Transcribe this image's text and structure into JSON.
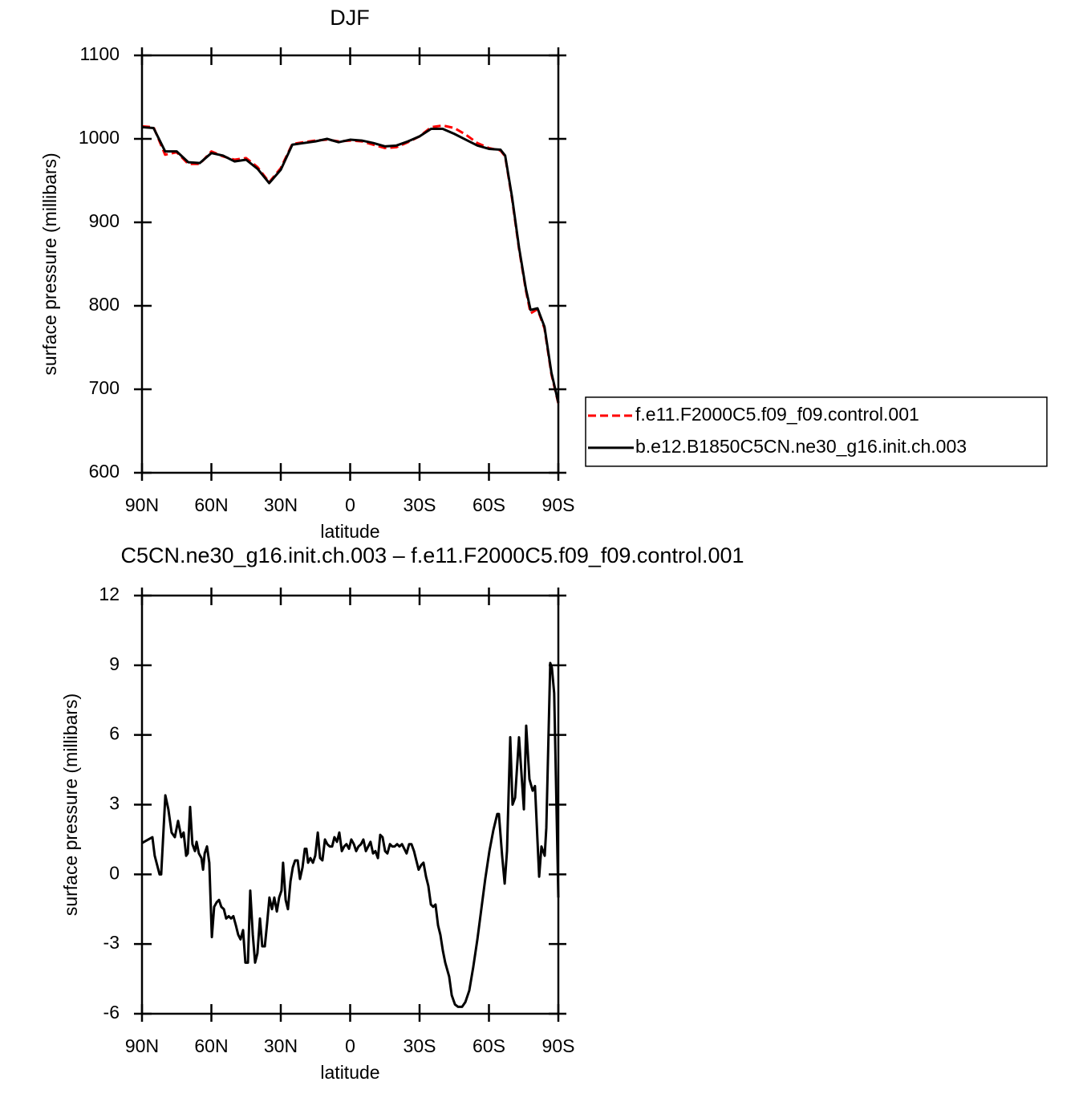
{
  "chart_data": [
    {
      "type": "line",
      "title": "DJF",
      "x_label": "latitude",
      "y_label": "surface pressure (millibars)",
      "x": [
        90,
        85,
        80,
        75,
        70,
        65,
        60,
        55,
        50,
        45,
        40,
        35,
        30,
        25,
        20,
        15,
        10,
        5,
        0,
        -5,
        -10,
        -15,
        -20,
        -25,
        -30,
        -35,
        -40,
        -45,
        -50,
        -55,
        -60,
        -65,
        -67,
        -70,
        -73,
        -76,
        -78,
        -81,
        -84,
        -87,
        -90
      ],
      "series": [
        {
          "name": "f.e11.F2000C5.f09_f09.control.001",
          "color": "#ff0000",
          "dash": true,
          "values": [
            1015,
            1014,
            981,
            984,
            970,
            970,
            985,
            979,
            975,
            977,
            966,
            948,
            965,
            994,
            996,
            998,
            999,
            997,
            998,
            997,
            993,
            989,
            990,
            996,
            1003,
            1014,
            1016,
            1013,
            1005,
            995,
            989,
            986,
            979,
            928,
            868,
            818,
            791,
            796,
            773,
            718,
            683
          ]
        },
        {
          "name": "b.e12.B1850C5CN.ne30_g16.init.ch.003",
          "color": "#000000",
          "dash": false,
          "values": [
            1014,
            1013,
            985,
            985,
            972,
            971,
            983,
            980,
            973,
            975,
            964,
            947,
            963,
            993,
            995,
            997,
            1000,
            996,
            999,
            998,
            995,
            991,
            992,
            997,
            1003,
            1012,
            1012,
            1006,
            999,
            992,
            988,
            987,
            980,
            930,
            870,
            820,
            795,
            797,
            775,
            720,
            684
          ]
        }
      ],
      "xlim": [
        90,
        -90
      ],
      "xticks": [
        {
          "value": 90,
          "label": "90N"
        },
        {
          "value": 60,
          "label": "60N"
        },
        {
          "value": 30,
          "label": "30N"
        },
        0,
        {
          "value": -30,
          "label": "30S"
        },
        {
          "value": -60,
          "label": "60S"
        },
        {
          "value": -90,
          "label": "90S"
        }
      ],
      "ylim": [
        600,
        1100
      ],
      "yticks": [
        600,
        700,
        800,
        900,
        1000,
        1100
      ],
      "legend": "right"
    },
    {
      "type": "line",
      "title": "C5CN.ne30_g16.init.ch.003 – f.e11.F2000C5.f09_f09.control.001",
      "x_label": "latitude",
      "y_label": "surface pressure (millibars)",
      "x": [
        90,
        85.5,
        84.5,
        82.4,
        81.7,
        79.9,
        78.6,
        77.2,
        75.8,
        74.4,
        73.0,
        72.0,
        70.9,
        70.2,
        69.2,
        68.2,
        67.1,
        66.4,
        65.4,
        64.3,
        63.6,
        62.9,
        61.9,
        60.9,
        59.8,
        58.8,
        57.7,
        56.7,
        55.7,
        54.6,
        53.6,
        52.5,
        51.5,
        50.5,
        49.4,
        48.4,
        47.4,
        46.3,
        45.3,
        44.2,
        43.2,
        42.1,
        41.1,
        40.1,
        39.0,
        38.0,
        36.9,
        35.9,
        34.9,
        33.8,
        32.8,
        31.7,
        30.7,
        29.7,
        29.0,
        27.9,
        26.9,
        25.8,
        24.8,
        23.8,
        22.7,
        21.7,
        20.6,
        19.6,
        18.9,
        18.2,
        17.2,
        16.1,
        15.1,
        14.0,
        13.0,
        12.0,
        10.9,
        9.9,
        8.8,
        7.8,
        6.8,
        5.7,
        4.7,
        3.6,
        2.6,
        1.6,
        0.5,
        -0.5,
        -1.6,
        -2.6,
        -3.6,
        -4.7,
        -5.7,
        -6.8,
        -7.8,
        -8.8,
        -9.9,
        -10.9,
        -12.0,
        -13.0,
        -14.0,
        -15.1,
        -16.1,
        -17.2,
        -18.2,
        -19.2,
        -20.3,
        -21.3,
        -22.4,
        -23.4,
        -24.4,
        -25.5,
        -26.5,
        -27.6,
        -28.6,
        -29.6,
        -30.7,
        -31.7,
        -32.8,
        -33.8,
        -34.9,
        -35.9,
        -36.9,
        -38.0,
        -39.0,
        -40.1,
        -41.1,
        -42.8,
        -43.9,
        -45.3,
        -46.6,
        -48.4,
        -49.8,
        -51.5,
        -53.2,
        -55.0,
        -56.7,
        -58.4,
        -60.2,
        -61.9,
        -63.6,
        -64.3,
        -65.7,
        -66.8,
        -67.8,
        -69.2,
        -70.2,
        -71.3,
        -73.0,
        -75.1,
        -76.1,
        -77.5,
        -78.9,
        -79.9,
        -81.7,
        -82.7,
        -84.1,
        -84.8,
        -86.5,
        -87.2,
        -88.2,
        -90.0
      ],
      "series": [
        {
          "color": "#000000",
          "dash": false,
          "values": [
            1.35,
            1.6,
            0.8,
            0.0,
            0.0,
            3.4,
            2.8,
            1.8,
            1.6,
            2.3,
            1.6,
            1.8,
            0.8,
            0.9,
            2.9,
            1.3,
            1.0,
            1.4,
            0.9,
            0.7,
            0.2,
            0.9,
            1.2,
            0.5,
            -2.7,
            -1.4,
            -1.2,
            -1.1,
            -1.4,
            -1.5,
            -1.9,
            -1.8,
            -1.9,
            -1.8,
            -2.2,
            -2.6,
            -2.8,
            -2.4,
            -3.8,
            -3.8,
            -0.7,
            -2.6,
            -3.8,
            -3.4,
            -1.9,
            -3.1,
            -3.1,
            -2.1,
            -1.0,
            -1.5,
            -1.0,
            -1.6,
            -1.0,
            -0.7,
            0.5,
            -1.1,
            -1.5,
            -0.3,
            0.3,
            0.6,
            0.6,
            -0.2,
            0.3,
            1.1,
            1.1,
            0.5,
            0.7,
            0.5,
            0.8,
            1.8,
            0.7,
            0.6,
            1.5,
            1.3,
            1.2,
            1.2,
            1.6,
            1.4,
            1.8,
            1.0,
            1.2,
            1.3,
            1.1,
            1.5,
            1.3,
            1.0,
            1.2,
            1.3,
            1.5,
            1.0,
            1.2,
            1.4,
            0.9,
            1.0,
            0.7,
            1.7,
            1.6,
            1.0,
            0.9,
            1.3,
            1.2,
            1.2,
            1.3,
            1.2,
            1.3,
            1.1,
            0.9,
            1.3,
            1.3,
            1.0,
            0.6,
            0.2,
            0.4,
            0.5,
            -0.1,
            -0.5,
            -1.3,
            -1.4,
            -1.3,
            -2.2,
            -2.6,
            -3.3,
            -3.8,
            -4.4,
            -5.2,
            -5.6,
            -5.7,
            -5.7,
            -5.5,
            -5.0,
            -4.0,
            -2.8,
            -1.5,
            -0.2,
            1.0,
            1.9,
            2.6,
            2.6,
            0.8,
            -0.4,
            1.0,
            5.9,
            3.0,
            3.3,
            5.9,
            2.8,
            6.4,
            4.1,
            3.6,
            3.8,
            -0.1,
            1.2,
            0.8,
            2.0,
            9.1,
            8.9,
            7.8,
            -1.0
          ]
        }
      ],
      "xlim": [
        90,
        -90
      ],
      "xticks": [
        {
          "value": 90,
          "label": "90N"
        },
        {
          "value": 60,
          "label": "60N"
        },
        {
          "value": 30,
          "label": "30N"
        },
        0,
        {
          "value": -30,
          "label": "30S"
        },
        {
          "value": -60,
          "label": "60S"
        },
        {
          "value": -90,
          "label": "90S"
        }
      ],
      "ylim": [
        -6,
        12
      ],
      "yticks": [
        -6,
        -3,
        0,
        3,
        6,
        9,
        12
      ]
    }
  ]
}
